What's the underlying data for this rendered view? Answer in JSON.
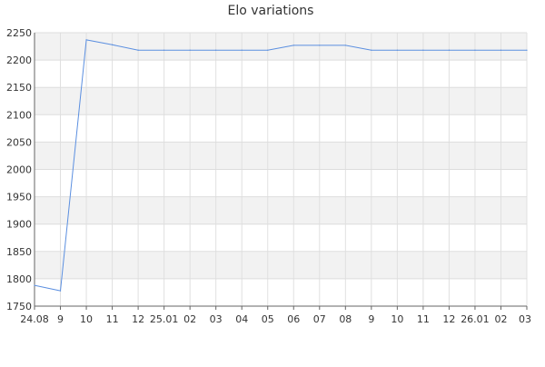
{
  "chart_data": {
    "type": "line",
    "title": "Elo variations",
    "xlabel": "",
    "ylabel": "",
    "ylim": [
      1750,
      2250
    ],
    "yticks": [
      1750,
      1800,
      1850,
      1900,
      1950,
      2000,
      2050,
      2100,
      2150,
      2200,
      2250
    ],
    "grid": true,
    "x_tick_labels": [
      "24.08",
      "9",
      "10",
      "11",
      "12",
      "25.01",
      "02",
      "03",
      "04",
      "05",
      "06",
      "07",
      "08",
      "9",
      "10",
      "11",
      "12",
      "26.01",
      "02",
      "03"
    ],
    "series": [
      {
        "color": "#5b8fe0",
        "values": [
          1788,
          1778,
          2237,
          2228,
          2218,
          2218,
          2218,
          2218,
          2218,
          2218,
          2227,
          2227,
          2227,
          2218,
          2218,
          2218,
          2218,
          2218,
          2218,
          2218
        ]
      }
    ]
  }
}
